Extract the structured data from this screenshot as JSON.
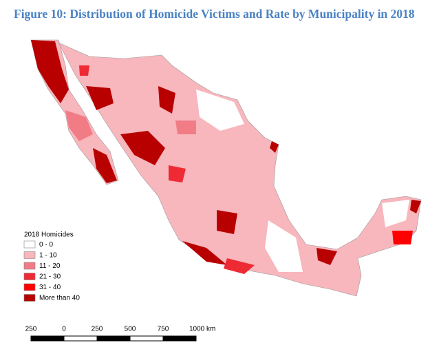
{
  "title": "Figure 10: Distribution of Homicide Victims and Rate by Municipality in 2018",
  "legend": {
    "title": "2018 Homicides",
    "items": [
      {
        "label": "0 - 0",
        "color": "#ffffff"
      },
      {
        "label": "1 - 10",
        "color": "#f8b6bd"
      },
      {
        "label": "11 - 20",
        "color": "#f27c86"
      },
      {
        "label": "21 - 30",
        "color": "#ee2a35"
      },
      {
        "label": "31 - 40",
        "color": "#ff0000"
      },
      {
        "label": "More than 40",
        "color": "#b80000"
      }
    ]
  },
  "scale_bar": {
    "labels": [
      "250",
      "0",
      "250",
      "500",
      "750",
      "1000 km"
    ]
  }
}
